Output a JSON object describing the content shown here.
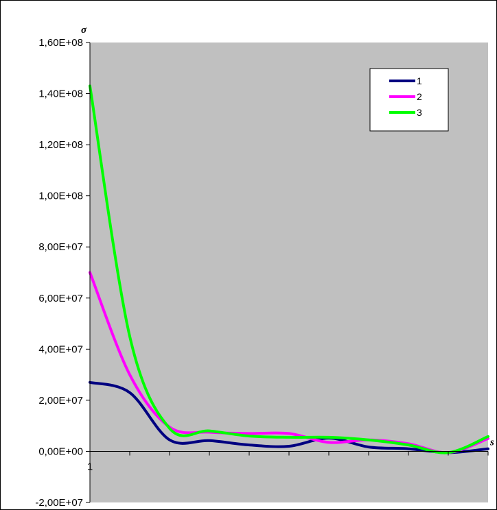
{
  "chart_data": {
    "type": "line",
    "title": "",
    "ylabel": "σ",
    "xlabel": "s",
    "ylim": [
      -20000000,
      160000000
    ],
    "yticks": [
      {
        "value": 160000000,
        "label": "1,60E+08"
      },
      {
        "value": 140000000,
        "label": "1,40E+08"
      },
      {
        "value": 120000000,
        "label": "1,20E+08"
      },
      {
        "value": 100000000,
        "label": "1,00E+08"
      },
      {
        "value": 80000000,
        "label": "8,00E+07"
      },
      {
        "value": 60000000,
        "label": "6,00E+07"
      },
      {
        "value": 40000000,
        "label": "4,00E+07"
      },
      {
        "value": 20000000,
        "label": "2,00E+07"
      },
      {
        "value": 0,
        "label": "0,00E+00"
      },
      {
        "value": -20000000,
        "label": "-2,00E+07"
      }
    ],
    "x": [
      1,
      2,
      3,
      4,
      5,
      6,
      7,
      8,
      9,
      10,
      11
    ],
    "xlim": [
      1,
      11
    ],
    "xtick_labels": [
      {
        "value": 1,
        "label": "1"
      }
    ],
    "grid": false,
    "legend": "top-right",
    "plot_background": "#c0c0c0",
    "series": [
      {
        "name": "1",
        "color": "#000080",
        "values": [
          27000000,
          23000000,
          4500000,
          4200000,
          2500000,
          2000000,
          5200000,
          1700000,
          1000000,
          -500000,
          1000000
        ]
      },
      {
        "name": "2",
        "color": "#ff00ff",
        "values": [
          70000000,
          30000000,
          9500000,
          7500000,
          7000000,
          7000000,
          3500000,
          4500000,
          3000000,
          -500000,
          5000000
        ]
      },
      {
        "name": "3",
        "color": "#00ff00",
        "values": [
          143000000,
          45000000,
          9000000,
          8000000,
          6000000,
          5500000,
          5500000,
          4500000,
          2500000,
          -500000,
          5800000
        ]
      }
    ]
  }
}
